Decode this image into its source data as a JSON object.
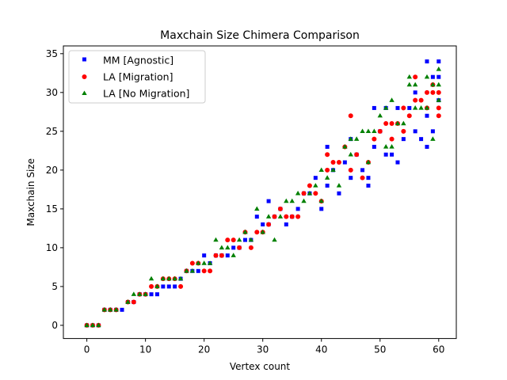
{
  "chart_data": {
    "type": "scatter",
    "title": "Maxchain Size Chimera Comparison",
    "xlabel": "Vertex count",
    "ylabel": "Maxchain Size",
    "xlim": [
      -4,
      63
    ],
    "ylim": [
      -1.7,
      36
    ],
    "xticks": [
      0,
      10,
      20,
      30,
      40,
      50,
      60
    ],
    "yticks": [
      0,
      5,
      10,
      15,
      20,
      25,
      30,
      35
    ],
    "grid": false,
    "legend_position": "top-left",
    "series": [
      {
        "name": "MM [Agnostic]",
        "marker": "square",
        "color": "#0000ff",
        "points": [
          [
            0,
            0
          ],
          [
            1,
            0
          ],
          [
            2,
            0
          ],
          [
            3,
            2
          ],
          [
            4,
            2
          ],
          [
            5,
            2
          ],
          [
            6,
            2
          ],
          [
            7,
            3
          ],
          [
            8,
            3
          ],
          [
            9,
            4
          ],
          [
            10,
            4
          ],
          [
            11,
            4
          ],
          [
            12,
            4
          ],
          [
            13,
            5
          ],
          [
            14,
            5
          ],
          [
            15,
            5
          ],
          [
            16,
            6
          ],
          [
            17,
            7
          ],
          [
            18,
            7
          ],
          [
            19,
            7
          ],
          [
            20,
            9
          ],
          [
            21,
            8
          ],
          [
            22,
            9
          ],
          [
            23,
            9
          ],
          [
            24,
            9
          ],
          [
            25,
            10
          ],
          [
            26,
            10
          ],
          [
            27,
            11
          ],
          [
            28,
            11
          ],
          [
            29,
            14
          ],
          [
            30,
            13
          ],
          [
            31,
            16
          ],
          [
            31,
            13
          ],
          [
            32,
            14
          ],
          [
            33,
            15
          ],
          [
            34,
            13
          ],
          [
            35,
            14
          ],
          [
            36,
            15
          ],
          [
            37,
            17
          ],
          [
            38,
            17
          ],
          [
            39,
            19
          ],
          [
            40,
            15
          ],
          [
            41,
            23
          ],
          [
            41,
            18
          ],
          [
            42,
            20
          ],
          [
            43,
            17
          ],
          [
            44,
            21
          ],
          [
            45,
            19
          ],
          [
            45,
            24
          ],
          [
            46,
            22
          ],
          [
            47,
            20
          ],
          [
            48,
            18
          ],
          [
            48,
            19
          ],
          [
            49,
            28
          ],
          [
            49,
            23
          ],
          [
            50,
            25
          ],
          [
            51,
            22
          ],
          [
            51,
            28
          ],
          [
            52,
            22
          ],
          [
            53,
            21
          ],
          [
            53,
            28
          ],
          [
            54,
            24
          ],
          [
            55,
            28
          ],
          [
            56,
            30
          ],
          [
            56,
            25
          ],
          [
            57,
            24
          ],
          [
            58,
            34
          ],
          [
            58,
            23
          ],
          [
            58,
            27
          ],
          [
            59,
            25
          ],
          [
            59,
            32
          ],
          [
            60,
            34
          ],
          [
            60,
            29
          ],
          [
            60,
            32
          ]
        ]
      },
      {
        "name": "LA [Migration]",
        "marker": "circle",
        "color": "#ff0000",
        "points": [
          [
            0,
            0
          ],
          [
            1,
            0
          ],
          [
            2,
            0
          ],
          [
            3,
            2
          ],
          [
            4,
            2
          ],
          [
            5,
            2
          ],
          [
            7,
            3
          ],
          [
            8,
            3
          ],
          [
            9,
            4
          ],
          [
            10,
            4
          ],
          [
            11,
            5
          ],
          [
            12,
            5
          ],
          [
            13,
            6
          ],
          [
            14,
            6
          ],
          [
            15,
            6
          ],
          [
            16,
            5
          ],
          [
            17,
            7
          ],
          [
            18,
            8
          ],
          [
            19,
            8
          ],
          [
            20,
            7
          ],
          [
            21,
            7
          ],
          [
            22,
            9
          ],
          [
            23,
            9
          ],
          [
            24,
            11
          ],
          [
            25,
            11
          ],
          [
            26,
            10
          ],
          [
            27,
            12
          ],
          [
            28,
            10
          ],
          [
            29,
            12
          ],
          [
            30,
            12
          ],
          [
            31,
            13
          ],
          [
            32,
            14
          ],
          [
            33,
            15
          ],
          [
            34,
            14
          ],
          [
            35,
            14
          ],
          [
            36,
            14
          ],
          [
            37,
            17
          ],
          [
            38,
            18
          ],
          [
            39,
            17
          ],
          [
            40,
            16
          ],
          [
            41,
            22
          ],
          [
            41,
            20
          ],
          [
            42,
            21
          ],
          [
            43,
            21
          ],
          [
            44,
            23
          ],
          [
            45,
            27
          ],
          [
            45,
            20
          ],
          [
            46,
            22
          ],
          [
            47,
            19
          ],
          [
            48,
            21
          ],
          [
            49,
            24
          ],
          [
            50,
            25
          ],
          [
            51,
            26
          ],
          [
            52,
            26
          ],
          [
            52,
            24
          ],
          [
            53,
            26
          ],
          [
            54,
            28
          ],
          [
            54,
            25
          ],
          [
            55,
            27
          ],
          [
            56,
            32
          ],
          [
            56,
            29
          ],
          [
            57,
            29
          ],
          [
            58,
            30
          ],
          [
            58,
            28
          ],
          [
            59,
            31
          ],
          [
            59,
            30
          ],
          [
            60,
            28
          ],
          [
            60,
            27
          ],
          [
            60,
            30
          ]
        ]
      },
      {
        "name": "LA [No Migration]",
        "marker": "triangle",
        "color": "#008000",
        "points": [
          [
            0,
            0
          ],
          [
            1,
            0
          ],
          [
            2,
            0
          ],
          [
            3,
            2
          ],
          [
            4,
            2
          ],
          [
            5,
            2
          ],
          [
            7,
            3
          ],
          [
            8,
            4
          ],
          [
            9,
            4
          ],
          [
            10,
            4
          ],
          [
            11,
            6
          ],
          [
            12,
            5
          ],
          [
            13,
            6
          ],
          [
            14,
            6
          ],
          [
            15,
            6
          ],
          [
            16,
            6
          ],
          [
            17,
            7
          ],
          [
            18,
            7
          ],
          [
            19,
            8
          ],
          [
            20,
            8
          ],
          [
            21,
            8
          ],
          [
            22,
            11
          ],
          [
            23,
            10
          ],
          [
            24,
            10
          ],
          [
            25,
            9
          ],
          [
            26,
            11
          ],
          [
            27,
            12
          ],
          [
            28,
            11
          ],
          [
            29,
            15
          ],
          [
            30,
            12
          ],
          [
            31,
            14
          ],
          [
            32,
            11
          ],
          [
            33,
            14
          ],
          [
            34,
            16
          ],
          [
            35,
            16
          ],
          [
            36,
            17
          ],
          [
            37,
            16
          ],
          [
            38,
            17
          ],
          [
            39,
            18
          ],
          [
            40,
            20
          ],
          [
            40,
            16
          ],
          [
            41,
            19
          ],
          [
            42,
            20
          ],
          [
            43,
            18
          ],
          [
            44,
            23
          ],
          [
            45,
            24
          ],
          [
            45,
            22
          ],
          [
            46,
            24
          ],
          [
            47,
            25
          ],
          [
            48,
            25
          ],
          [
            48,
            21
          ],
          [
            49,
            25
          ],
          [
            50,
            27
          ],
          [
            51,
            28
          ],
          [
            51,
            23
          ],
          [
            52,
            29
          ],
          [
            52,
            23
          ],
          [
            53,
            26
          ],
          [
            54,
            26
          ],
          [
            55,
            32
          ],
          [
            55,
            31
          ],
          [
            56,
            31
          ],
          [
            56,
            28
          ],
          [
            57,
            28
          ],
          [
            58,
            28
          ],
          [
            58,
            32
          ],
          [
            59,
            24
          ],
          [
            59,
            31
          ],
          [
            60,
            31
          ],
          [
            60,
            33
          ],
          [
            60,
            29
          ]
        ]
      }
    ]
  }
}
